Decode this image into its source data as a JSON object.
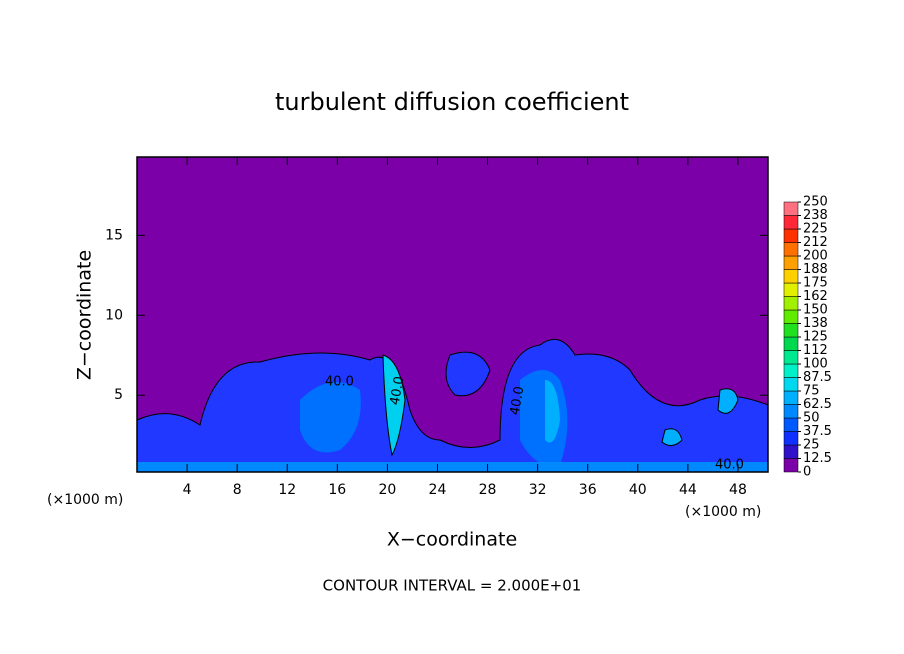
{
  "chart_data": {
    "type": "heatmap",
    "title": "turbulent diffusion coefficient",
    "xlabel": "X−coordinate",
    "ylabel": "Z−coordinate",
    "x_unit": "(×1000 m)",
    "footer": "CONTOUR INTERVAL = 2.000E+01",
    "xlim": [
      0,
      50.4
    ],
    "ylim": [
      0.2,
      19.9
    ],
    "xticks": [
      4,
      8,
      12,
      16,
      20,
      24,
      28,
      32,
      36,
      40,
      44,
      48
    ],
    "yticks": [
      5,
      10,
      15
    ],
    "colorbar_ticks": [
      0,
      12.5,
      25,
      37.5,
      50,
      62.5,
      75,
      87.5,
      100,
      {
        "value": 112.5,
        "label": "112"
      },
      125,
      {
        "value": 137.5,
        "label": "138"
      },
      150,
      {
        "value": 162.5,
        "label": "162"
      },
      175,
      {
        "value": 187.5,
        "label": "188"
      },
      200,
      {
        "value": 212.5,
        "label": "212"
      },
      225,
      {
        "value": 237.5,
        "label": "238"
      },
      250
    ],
    "colorbar_colors": [
      "#7b00a8",
      "#3010c8",
      "#1030ff",
      "#0058ff",
      "#0088ff",
      "#00b0ff",
      "#00d8f0",
      "#00f0c8",
      "#00e890",
      "#00d850",
      "#20e020",
      "#60ec00",
      "#a0f000",
      "#e0f000",
      "#ffd000",
      "#ffa000",
      "#ff7000",
      "#ff3000",
      "#ff2838",
      "#ff7080"
    ],
    "contour_labels": [
      "40.0",
      "40.0",
      "40.0",
      "40.0"
    ]
  }
}
